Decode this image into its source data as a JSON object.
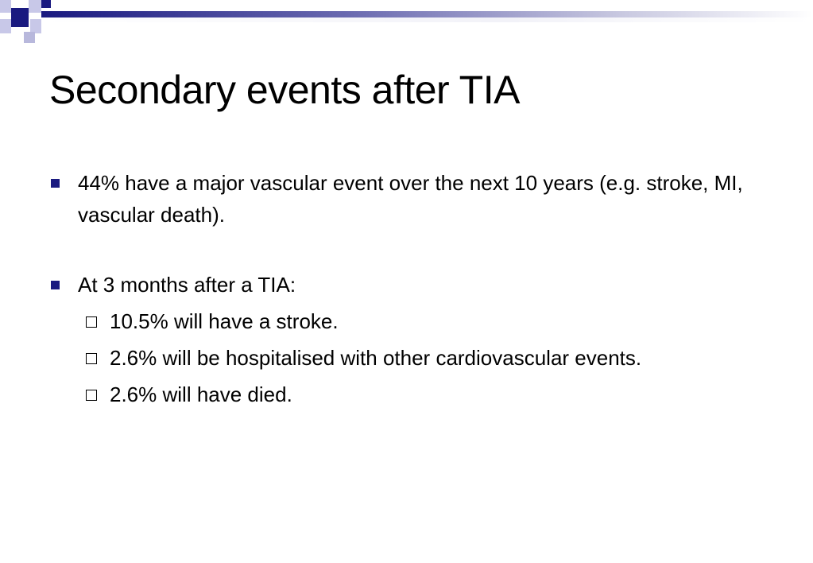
{
  "slide": {
    "title": "Secondary events after TIA",
    "bullets": [
      {
        "text": "44% have a major vascular event over the next 10 years (e.g. stroke, MI, vascular death).",
        "sub": []
      },
      {
        "text": "At 3 months after a TIA:",
        "sub": [
          "10.5% will have a stroke.",
          "2.6% will be hospitalised with other cardiovascular events.",
          "2.6% will have died."
        ]
      }
    ]
  },
  "colors": {
    "accent": "#1a1a80",
    "accent_light": "#c8c8e8",
    "text": "#000000",
    "background": "#ffffff"
  },
  "icons": {
    "primary_bullet": "filled-square-bullet-icon",
    "secondary_bullet": "hollow-square-bullet-icon"
  }
}
